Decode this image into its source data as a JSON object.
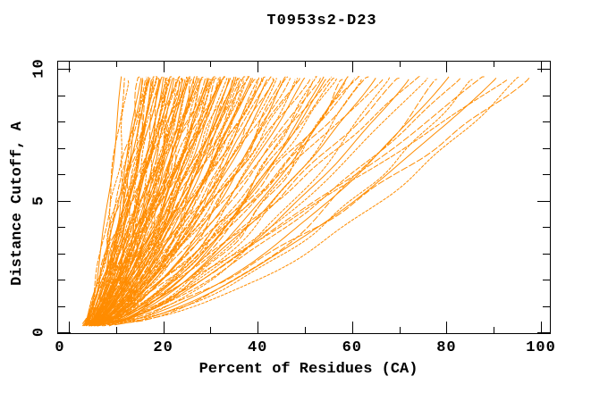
{
  "figure": {
    "background": "#ffffff"
  },
  "chart_data": {
    "type": "line",
    "title": "T0953s2-D23",
    "xlabel": "Percent of Residues (CA)",
    "ylabel": "Distance Cutoff, A",
    "xlim": [
      0,
      100
    ],
    "ylim": [
      0,
      10
    ],
    "x_major_ticks": [
      0,
      20,
      40,
      60,
      80,
      100
    ],
    "x_minor_ticks": [
      10,
      30,
      50,
      70,
      90
    ],
    "y_major_ticks": [
      0,
      5,
      10
    ],
    "y_minor_ticks": [
      1,
      2,
      3,
      4,
      6,
      7,
      8,
      9
    ],
    "grid": false,
    "legend": false,
    "line_color": "#FF8C00",
    "axis_color": "#000000",
    "description": "CASP cumulative distance plot for target T0953s2-D23: each orange curve is one predicted model, showing the percent of CA residues (x) superimposable within a given distance cutoff in Angstroms (y). Roughly 140 overlapping model curves rise from ~4% at 0.3 A toward 11-98% at 9.7 A; individual curve values are estimates read from the dense overlapping figure.",
    "curve_y_start": 0.3,
    "curve_y_end": 9.7,
    "curve_param_format": [
      "x_percent_at_y_start",
      "x_percent_at_y_end",
      "shape_exponent"
    ],
    "curves": [
      [
        2.9,
        11.2,
        0.62
      ],
      [
        3.6,
        11.8,
        0.75
      ],
      [
        3.2,
        12.5,
        0.58
      ],
      [
        4.6,
        15.0,
        0.85
      ],
      [
        3.9,
        15.6,
        0.68
      ],
      [
        3.4,
        16.2,
        0.92
      ],
      [
        4.4,
        16.8,
        0.6
      ],
      [
        2.9,
        17.3,
        0.78
      ],
      [
        4.5,
        17.9,
        0.66
      ],
      [
        5.2,
        18.4,
        0.88
      ],
      [
        3.1,
        19.0,
        0.72
      ],
      [
        4.5,
        19.5,
        0.56
      ],
      [
        3.9,
        20.1,
        0.62
      ],
      [
        5.1,
        20.6,
        0.75
      ],
      [
        4.3,
        21.2,
        0.58
      ],
      [
        3.8,
        21.8,
        0.85
      ],
      [
        5.0,
        22.3,
        0.68
      ],
      [
        3.3,
        22.9,
        0.92
      ],
      [
        4.8,
        23.5,
        0.6
      ],
      [
        5.6,
        24.0,
        0.78
      ],
      [
        3.7,
        24.6,
        0.66
      ],
      [
        4.9,
        25.2,
        0.88
      ],
      [
        4.3,
        25.8,
        0.72
      ],
      [
        5.5,
        26.4,
        0.56
      ],
      [
        4.7,
        27.0,
        0.62
      ],
      [
        4.2,
        27.7,
        0.75
      ],
      [
        5.4,
        28.3,
        0.58
      ],
      [
        3.8,
        29.0,
        0.85
      ],
      [
        5.3,
        29.6,
        0.68
      ],
      [
        6.0,
        30.3,
        0.92
      ],
      [
        4.2,
        31.0,
        0.6
      ],
      [
        5.3,
        31.7,
        0.78
      ],
      [
        4.8,
        32.4,
        0.66
      ],
      [
        6.0,
        33.1,
        0.88
      ],
      [
        5.2,
        33.9,
        0.72
      ],
      [
        4.7,
        34.6,
        0.56
      ],
      [
        5.9,
        35.4,
        0.62
      ],
      [
        4.3,
        36.2,
        0.75
      ],
      [
        5.8,
        37.0,
        0.58
      ],
      [
        6.5,
        37.8,
        0.85
      ],
      [
        4.7,
        38.6,
        0.68
      ],
      [
        5.9,
        39.5,
        0.92
      ],
      [
        5.3,
        40.3,
        0.6
      ],
      [
        6.6,
        41.2,
        0.78
      ],
      [
        5.7,
        42.1,
        0.66
      ],
      [
        5.3,
        43.0,
        0.88
      ],
      [
        6.5,
        44.0,
        0.72
      ],
      [
        4.9,
        44.9,
        0.56
      ],
      [
        6.4,
        45.9,
        0.62
      ],
      [
        7.2,
        46.9,
        0.75
      ],
      [
        5.4,
        47.9,
        0.58
      ],
      [
        6.5,
        49.0,
        0.85
      ],
      [
        6.0,
        50.0,
        0.68
      ],
      [
        7.3,
        51.1,
        0.92
      ],
      [
        6.5,
        52.2,
        0.6
      ],
      [
        6.0,
        53.3,
        0.78
      ],
      [
        7.2,
        54.5,
        0.66
      ],
      [
        5.7,
        55.6,
        0.88
      ],
      [
        7.2,
        56.8,
        0.72
      ],
      [
        8.0,
        58.0,
        0.56
      ],
      [
        6.1,
        59.2,
        0.62
      ],
      [
        7.3,
        60.5,
        0.75
      ],
      [
        6.8,
        62.0,
        0.58
      ],
      [
        8.2,
        63.5,
        0.85
      ],
      [
        7.4,
        65.0,
        0.68
      ],
      [
        7.0,
        66.5,
        0.92
      ],
      [
        8.2,
        68.0,
        0.6
      ],
      [
        6.7,
        70.0,
        0.78
      ],
      [
        8.2,
        72.0,
        0.66
      ],
      [
        9.1,
        74.0,
        0.88
      ],
      [
        7.3,
        76.0,
        0.72
      ],
      [
        8.6,
        78.0,
        0.56
      ],
      [
        8.1,
        80.5,
        0.62
      ],
      [
        9.5,
        83.0,
        0.75
      ],
      [
        8.8,
        85.5,
        0.58
      ],
      [
        8.5,
        88.0,
        0.85
      ],
      [
        9.7,
        90.5,
        0.68
      ],
      [
        8.3,
        93.0,
        0.92
      ],
      [
        9.9,
        95.5,
        0.6
      ],
      [
        10.7,
        97.5,
        0.78
      ],
      [
        3.2,
        16.5,
        0.66
      ],
      [
        4.4,
        18.7,
        0.88
      ],
      [
        4.0,
        20.9,
        0.72
      ],
      [
        5.3,
        23.2,
        0.56
      ],
      [
        4.6,
        25.5,
        0.62
      ],
      [
        4.2,
        27.4,
        0.75
      ],
      [
        5.5,
        29.9,
        0.58
      ],
      [
        4.0,
        32.0,
        0.85
      ],
      [
        5.6,
        34.2,
        0.68
      ],
      [
        6.5,
        36.6,
        0.92
      ],
      [
        4.7,
        38.2,
        0.6
      ],
      [
        6.0,
        40.8,
        0.78
      ],
      [
        5.6,
        43.5,
        0.66
      ],
      [
        7.0,
        46.4,
        0.88
      ],
      [
        6.2,
        48.4,
        0.72
      ],
      [
        5.9,
        51.6,
        0.56
      ],
      [
        7.2,
        54.0,
        0.62
      ],
      [
        5.7,
        56.2,
        0.75
      ],
      [
        7.3,
        58.6,
        0.58
      ],
      [
        8.2,
        61.2,
        0.85
      ],
      [
        3.6,
        15.3,
        0.8
      ],
      [
        4.1,
        15.9,
        0.64
      ],
      [
        3.5,
        16.4,
        0.9
      ],
      [
        4.3,
        17.1,
        0.7
      ],
      [
        3.2,
        17.6,
        0.6
      ],
      [
        4.6,
        18.1,
        0.82
      ],
      [
        3.9,
        18.9,
        0.58
      ],
      [
        4.8,
        19.3,
        0.74
      ],
      [
        3.6,
        19.8,
        0.88
      ],
      [
        4.4,
        20.4,
        0.62
      ],
      [
        5.0,
        21.0,
        0.78
      ],
      [
        3.8,
        21.5,
        0.56
      ],
      [
        4.7,
        22.1,
        0.84
      ],
      [
        4.0,
        22.6,
        0.68
      ],
      [
        5.2,
        23.3,
        0.92
      ],
      [
        4.2,
        23.8,
        0.6
      ],
      [
        5.0,
        24.3,
        0.76
      ],
      [
        3.9,
        24.9,
        0.66
      ],
      [
        5.3,
        25.5,
        0.86
      ],
      [
        4.5,
        26.1,
        0.58
      ],
      [
        5.1,
        26.7,
        0.72
      ],
      [
        4.3,
        27.3,
        0.9
      ],
      [
        5.5,
        28.0,
        0.62
      ],
      [
        4.6,
        28.6,
        0.8
      ],
      [
        5.2,
        29.3,
        0.68
      ],
      [
        4.4,
        30.0,
        0.56
      ],
      [
        5.6,
        30.6,
        0.84
      ],
      [
        4.8,
        31.3,
        0.64
      ],
      [
        5.7,
        32.1,
        0.78
      ],
      [
        4.9,
        32.8,
        0.92
      ],
      [
        5.4,
        33.5,
        0.6
      ],
      [
        5.0,
        34.3,
        0.74
      ],
      [
        5.8,
        35.0,
        0.66
      ],
      [
        5.2,
        35.8,
        0.88
      ],
      [
        4.8,
        36.5,
        0.58
      ],
      [
        6.0,
        37.4,
        0.8
      ],
      [
        5.5,
        38.9,
        0.7
      ],
      [
        6.2,
        40.0,
        0.62
      ],
      [
        5.8,
        41.6,
        0.86
      ],
      [
        6.3,
        43.2,
        0.72
      ]
    ]
  }
}
